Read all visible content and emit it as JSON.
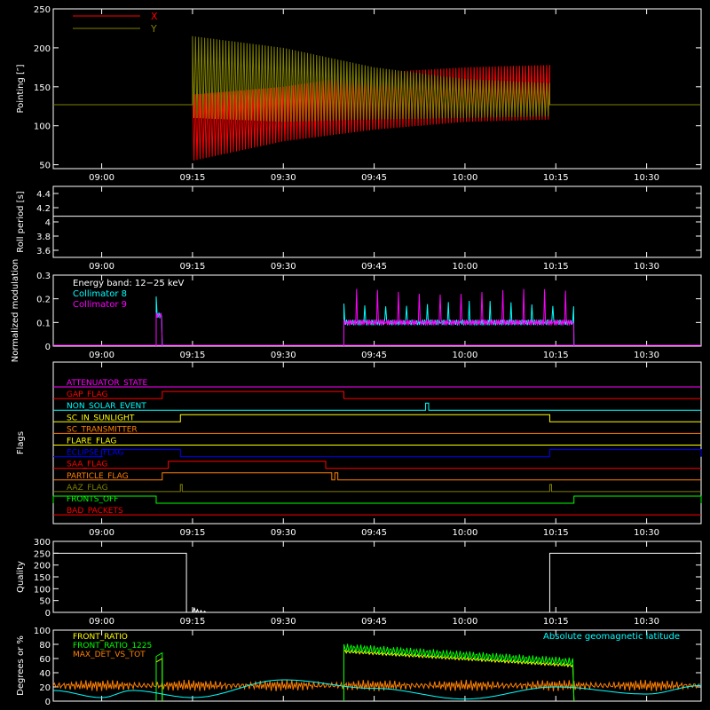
{
  "time_axis": {
    "range": [
      "08:52",
      "10:39"
    ],
    "tick_labels": [
      "09:00",
      "09:15",
      "09:30",
      "09:45",
      "10:00",
      "10:15",
      "10:30"
    ],
    "tick_minutes": [
      540,
      555,
      570,
      585,
      600,
      615,
      630
    ],
    "start_minute": 532,
    "end_minute": 639
  },
  "chart_data": [
    {
      "type": "line",
      "panel": "pointing",
      "ylabel": "Pointing [″]",
      "ylim": [
        45,
        250
      ],
      "yticks": [
        50,
        100,
        150,
        200,
        250
      ],
      "legend": [
        {
          "name": "X",
          "color": "#ff0000"
        },
        {
          "name": "Y",
          "color": "#808000"
        }
      ],
      "series": [
        {
          "name": "X",
          "color": "#ff0000",
          "baseline": 127,
          "active_start": "09:15",
          "active_end": "10:14",
          "envelope_upper": [
            [
              555,
              140
            ],
            [
              570,
              150
            ],
            [
              585,
              168
            ],
            [
              600,
              175
            ],
            [
              614,
              178
            ]
          ],
          "envelope_lower": [
            [
              555,
              55
            ],
            [
              570,
              80
            ],
            [
              585,
              95
            ],
            [
              600,
              105
            ],
            [
              614,
              108
            ]
          ]
        },
        {
          "name": "Y",
          "color": "#808000",
          "baseline": 127,
          "active_start": "09:15",
          "active_end": "10:14",
          "envelope_upper": [
            [
              555,
              215
            ],
            [
              570,
              200
            ],
            [
              585,
              175
            ],
            [
              600,
              160
            ],
            [
              614,
              155
            ]
          ],
          "envelope_lower": [
            [
              555,
              110
            ],
            [
              570,
              105
            ],
            [
              585,
              108
            ],
            [
              600,
              110
            ],
            [
              614,
              112
            ]
          ]
        }
      ]
    },
    {
      "type": "line",
      "panel": "roll_period",
      "ylabel": "Roll period [s]",
      "ylim": [
        3.5,
        4.5
      ],
      "yticks": [
        3.6,
        3.8,
        4.0,
        4.2,
        4.4
      ],
      "series": [
        {
          "name": "Roll period",
          "color": "#ffffff",
          "baseline": 4.08
        }
      ]
    },
    {
      "type": "line",
      "panel": "modulation",
      "ylabel": "Normalized modulation",
      "ylim": [
        0,
        0.3
      ],
      "yticks": [
        0.0,
        0.1,
        0.2,
        0.3
      ],
      "annotation": "Energy band: 12−25 keV",
      "legend": [
        {
          "name": "Collimator 8",
          "color": "#00ffff"
        },
        {
          "name": "Collimator 9",
          "color": "#ff00ff"
        }
      ],
      "series": [
        {
          "name": "Collimator 8",
          "color": "#00ffff",
          "segments": [
            [
              "09:09",
              "09:10",
              0.13
            ],
            [
              "09:40",
              "10:18",
              0.1
            ]
          ]
        },
        {
          "name": "Collimator 9",
          "color": "#ff00ff",
          "segments": [
            [
              "09:09",
              "09:10",
              0.13
            ],
            [
              "09:40",
              "10:18",
              0.1
            ]
          ]
        }
      ]
    },
    {
      "type": "line",
      "panel": "flags",
      "ylabel": "Flags",
      "series": [
        {
          "name": "ATTENUATOR_STATE",
          "color": "#ff00ff",
          "on_intervals": []
        },
        {
          "name": "GAP_FLAG",
          "color": "#ff0000",
          "on_intervals": [
            [
              "09:10",
              "09:40"
            ]
          ]
        },
        {
          "name": "NON_SOLAR_EVENT",
          "color": "#00ffff",
          "on_intervals": [
            [
              "09:53.5",
              "09:54"
            ]
          ]
        },
        {
          "name": "SC_IN_SUNLIGHT",
          "color": "#ffff00",
          "on_intervals": [
            [
              "09:13",
              "10:14"
            ]
          ]
        },
        {
          "name": "SC_TRANSMITTER",
          "color": "#ff8000",
          "on_intervals": []
        },
        {
          "name": "FLARE_FLAG",
          "color": "#ffff00",
          "on_intervals": []
        },
        {
          "name": "ECLIPSE_FLAG",
          "color": "#0000ff",
          "on_intervals": [
            [
              "09:00",
              "09:13"
            ],
            [
              "10:14",
              "10:39"
            ]
          ]
        },
        {
          "name": "SAA_FLAG",
          "color": "#ff0000",
          "on_intervals": [
            [
              "09:11",
              "09:37"
            ]
          ]
        },
        {
          "name": "PARTICLE_FLAG",
          "color": "#ff8000",
          "on_intervals": [
            [
              "09:10",
              "09:38"
            ],
            [
              "09:38.5",
              "09:39"
            ]
          ]
        },
        {
          "name": "AAZ_FLAG",
          "color": "#808000",
          "on_intervals": [
            [
              "09:13",
              "09:13.3"
            ],
            [
              "10:14",
              "10:14.3"
            ]
          ]
        },
        {
          "name": "FRONTS_OFF",
          "color": "#00ff00",
          "on_intervals": [
            [
              "08:52",
              "09:09"
            ],
            [
              "10:18",
              "10:39"
            ]
          ]
        },
        {
          "name": "BAD_PACKETS",
          "color": "#ff0000",
          "on_intervals": []
        }
      ]
    },
    {
      "type": "line",
      "panel": "quality",
      "ylabel": "Quality",
      "ylim": [
        0,
        300
      ],
      "yticks": [
        0,
        50,
        100,
        150,
        200,
        250,
        300
      ],
      "series": [
        {
          "name": "Quality",
          "color": "#ffffff",
          "segments": [
            [
              "08:52",
              "09:14",
              250
            ],
            [
              "10:14",
              "10:39",
              250
            ]
          ]
        }
      ]
    },
    {
      "type": "line",
      "panel": "front_ratio",
      "ylabel": "Degrees or %",
      "ylim": [
        0,
        100
      ],
      "yticks": [
        0,
        20,
        40,
        60,
        80,
        100
      ],
      "annotation": "Absolute geomagnetic latitude",
      "legend": [
        {
          "name": "FRONT_RATIO",
          "color": "#ffff00"
        },
        {
          "name": "FRONT_RATIO_1225",
          "color": "#00ff00"
        },
        {
          "name": "MAX_DET_VS_TOT",
          "color": "#ff8000"
        }
      ],
      "series": [
        {
          "name": "FRONT_RATIO",
          "color": "#ffff00",
          "level": 60,
          "active": [
            "09:40",
            "10:18"
          ]
        },
        {
          "name": "FRONT_RATIO_1225",
          "color": "#00ff00",
          "level": 65,
          "active": [
            "09:40",
            "10:18"
          ]
        },
        {
          "name": "MAX_DET_VS_TOT",
          "color": "#ff8000",
          "level": 22
        },
        {
          "name": "Absolute geomagnetic latitude",
          "color": "#00ffff",
          "points": [
            [
              532,
              15
            ],
            [
              540,
              5
            ],
            [
              545,
              15
            ],
            [
              555,
              5
            ],
            [
              570,
              30
            ],
            [
              585,
              18
            ],
            [
              600,
              3
            ],
            [
              615,
              20
            ],
            [
              630,
              10
            ],
            [
              639,
              22
            ]
          ]
        }
      ]
    }
  ]
}
